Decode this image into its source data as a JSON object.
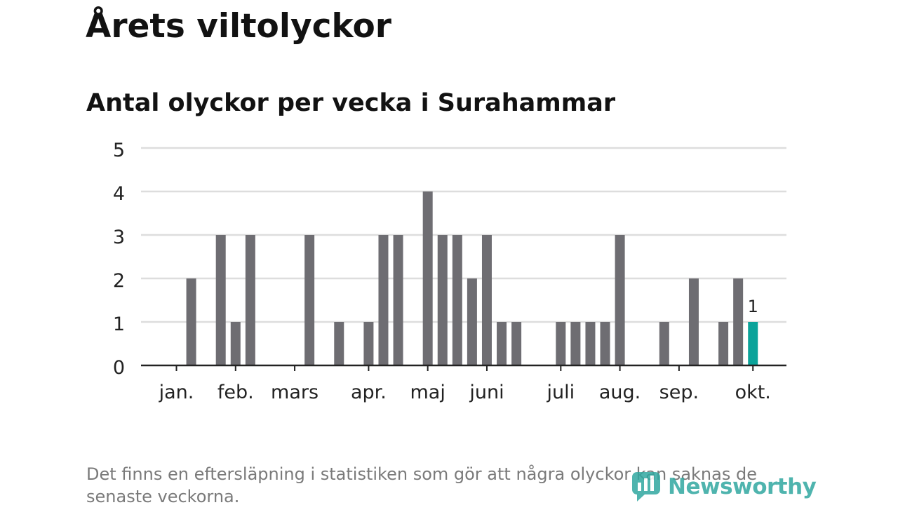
{
  "title": "Årets viltolyckor",
  "subtitle": "Antal olyckor per vecka i Surahammar",
  "footnote": "Det finns en eftersläpning i statistiken som gör att några olyckor kan saknas de senaste veckorna.",
  "brand": {
    "name": "Newsworthy",
    "color": "#31a8a0",
    "icon": "newsworthy-logo-icon"
  },
  "colors": {
    "bar": "#6e6d72",
    "highlight": "#0ba39a",
    "grid": "#dddddd",
    "axis": "#222222"
  },
  "chart_data": {
    "type": "bar",
    "title": "Antal olyckor per vecka i Surahammar",
    "xlabel": "",
    "ylabel": "",
    "ylim": [
      0,
      5
    ],
    "yticks": [
      0,
      1,
      2,
      3,
      4,
      5
    ],
    "grid": true,
    "weeks": [
      1,
      2,
      3,
      4,
      5,
      6,
      7,
      8,
      9,
      10,
      11,
      12,
      13,
      14,
      15,
      16,
      17,
      18,
      19,
      20,
      21,
      22,
      23,
      24,
      25,
      26,
      27,
      28,
      29,
      30,
      31,
      32,
      33,
      34,
      35,
      36,
      37,
      38,
      39,
      40,
      41,
      42,
      43
    ],
    "values": [
      0,
      0,
      0,
      2,
      0,
      3,
      1,
      3,
      0,
      0,
      0,
      3,
      0,
      1,
      0,
      1,
      3,
      3,
      0,
      4,
      3,
      3,
      2,
      3,
      1,
      1,
      0,
      0,
      1,
      1,
      1,
      1,
      3,
      0,
      0,
      1,
      0,
      2,
      0,
      1,
      2,
      1,
      0
    ],
    "highlight_week": 42,
    "highlight_label": "1",
    "month_labels": [
      {
        "label": "jan.",
        "week": 3
      },
      {
        "label": "feb.",
        "week": 7
      },
      {
        "label": "mars",
        "week": 11
      },
      {
        "label": "apr.",
        "week": 16
      },
      {
        "label": "maj",
        "week": 20
      },
      {
        "label": "juni",
        "week": 24
      },
      {
        "label": "juli",
        "week": 29
      },
      {
        "label": "aug.",
        "week": 33
      },
      {
        "label": "sep.",
        "week": 37
      },
      {
        "label": "okt.",
        "week": 42
      }
    ]
  }
}
